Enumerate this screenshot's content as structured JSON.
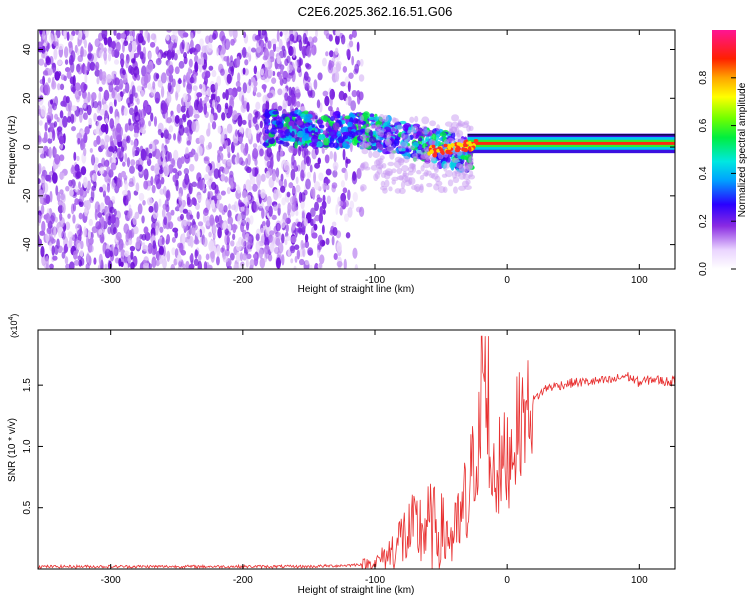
{
  "title": "C2E6.2025.362.16.51.G06",
  "chart_data": [
    {
      "type": "heatmap",
      "name": "spectrogram",
      "xlabel": "Height of straight line (km)",
      "ylabel": "Frequency (Hz)",
      "xlim": [
        -355,
        127
      ],
      "ylim": [
        -50,
        48
      ],
      "xticks": [
        -300,
        -200,
        -100,
        0,
        100
      ],
      "yticks": [
        -40,
        -20,
        0,
        20,
        40
      ],
      "xtick_labels": [
        "-300",
        "-200",
        "-100",
        "0",
        "100"
      ],
      "ytick_labels": [
        "-40",
        "-20",
        "0",
        "20",
        "40"
      ],
      "colorbar": {
        "label": "Normalized spectral amplitude",
        "range": [
          0,
          1
        ],
        "ticks": [
          0,
          0.2,
          0.4,
          0.6,
          0.8
        ],
        "tick_labels": [
          "0.0",
          "0.2",
          "0.4",
          "0.6",
          "0.8"
        ]
      },
      "features": {
        "noise_region_km": [
          -355,
          -110
        ],
        "transition_region_km": [
          -110,
          -30
        ],
        "tone_region_km": [
          -30,
          127
        ],
        "tone_frequency_hz": 1.5
      }
    },
    {
      "type": "line",
      "name": "snr",
      "xlabel": "Height of straight line (km)",
      "ylabel": "SNR (10 * v/v)",
      "exponent_label": "(x10",
      "exponent_power": "4",
      "exponent_close": ")",
      "xlim": [
        -355,
        127
      ],
      "ylim": [
        0,
        1.95
      ],
      "xticks": [
        -300,
        -200,
        -100,
        0,
        100
      ],
      "yticks": [
        0.5,
        1.0,
        1.5
      ],
      "xtick_labels": [
        "-300",
        "-200",
        "-100",
        "0",
        "100"
      ],
      "ytick_labels": [
        "0.5",
        "1.0",
        "1.5"
      ],
      "color": "#e83030",
      "series": [
        {
          "name": "SNR",
          "x": [
            -355,
            -300,
            -200,
            -150,
            -120,
            -100,
            -90,
            -80,
            -70,
            -60,
            -50,
            -40,
            -30,
            -25,
            -20,
            -17,
            -15,
            -10,
            -5,
            0,
            5,
            10,
            20,
            30,
            50,
            80,
            90,
            100,
            110,
            120,
            127
          ],
          "y": [
            0.02,
            0.02,
            0.02,
            0.02,
            0.03,
            0.05,
            0.12,
            0.25,
            0.3,
            0.35,
            0.3,
            0.25,
            0.5,
            0.9,
            1.1,
            1.6,
            0.9,
            0.85,
            0.8,
            0.9,
            1.05,
            1.2,
            1.38,
            1.48,
            1.52,
            1.54,
            1.58,
            1.52,
            1.55,
            1.53,
            1.53
          ]
        }
      ]
    }
  ]
}
